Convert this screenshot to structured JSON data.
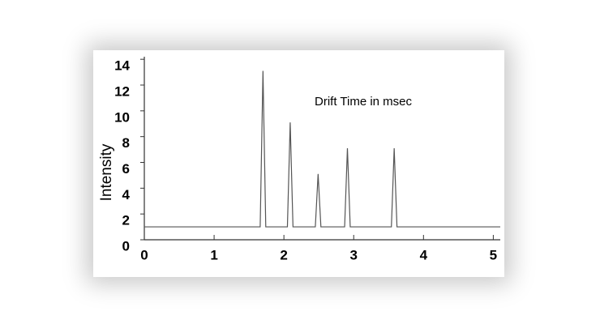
{
  "chart_data": {
    "type": "line",
    "annotation": "Drift Time in msec",
    "y_label": "Intensity",
    "x": [
      0,
      1.66,
      1.7,
      1.74,
      2.05,
      2.09,
      2.13,
      2.45,
      2.49,
      2.53,
      2.87,
      2.91,
      2.95,
      3.54,
      3.58,
      3.62,
      5.1
    ],
    "series": [
      {
        "color": "#555555",
        "values": [
          1,
          1,
          13.1,
          1,
          1,
          9.1,
          1,
          1,
          5.1,
          1,
          1,
          7.1,
          1,
          1,
          7.1,
          1,
          1
        ]
      }
    ],
    "xlim": [
      0,
      5.1
    ],
    "xticks": [
      0,
      1,
      2,
      3,
      4,
      5
    ],
    "ylim": [
      0,
      14.2
    ],
    "yticks": [
      0,
      2,
      4,
      6,
      8,
      10,
      12,
      14
    ]
  }
}
